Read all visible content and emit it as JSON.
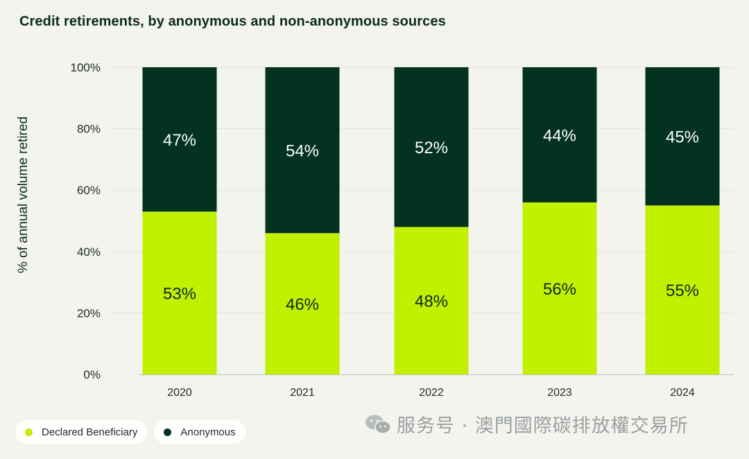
{
  "chart_data": {
    "type": "bar",
    "stacked": true,
    "title": "Credit retirements, by anonymous and non-anonymous sources",
    "ylabel": "% of annual volume retired",
    "xlabel": "",
    "ylim": [
      0,
      100
    ],
    "yticks": [
      "0%",
      "20%",
      "40%",
      "60%",
      "80%",
      "100%"
    ],
    "yticks_values": [
      0,
      20,
      40,
      60,
      80,
      100
    ],
    "categories": [
      "2020",
      "2021",
      "2022",
      "2023",
      "2024"
    ],
    "grid": true,
    "legend_position": "bottom-left",
    "series": [
      {
        "name": "Declared Beneficiary",
        "values": [
          53,
          46,
          48,
          56,
          55
        ],
        "labels": [
          "53%",
          "46%",
          "48%",
          "56%",
          "55%"
        ],
        "color": "#c1f001"
      },
      {
        "name": "Anonymous",
        "values": [
          47,
          54,
          52,
          44,
          45
        ],
        "labels": [
          "47%",
          "54%",
          "52%",
          "44%",
          "45%"
        ],
        "color": "#033220"
      }
    ]
  },
  "watermark": {
    "text": "服务号 · 澳門國際碳排放權交易所",
    "icon": "wechat-icon"
  },
  "colors": {
    "background": "#f4f4ef",
    "grid": "#e2e3dc"
  }
}
